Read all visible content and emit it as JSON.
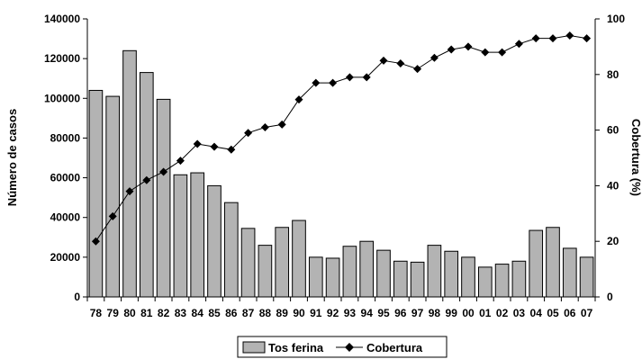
{
  "chart_data": {
    "type": "bar",
    "categories": [
      "78",
      "79",
      "80",
      "81",
      "82",
      "83",
      "84",
      "85",
      "86",
      "87",
      "88",
      "89",
      "90",
      "91",
      "92",
      "93",
      "94",
      "95",
      "96",
      "97",
      "98",
      "99",
      "00",
      "01",
      "02",
      "03",
      "04",
      "05",
      "06",
      "07"
    ],
    "series": [
      {
        "name": "Tos ferina",
        "type": "bar",
        "axis": "left",
        "color": "#b3b3b3",
        "values": [
          104000,
          101000,
          124000,
          113000,
          99500,
          61500,
          62500,
          56000,
          47500,
          34500,
          26000,
          35000,
          38500,
          20000,
          19500,
          25500,
          28000,
          23500,
          18000,
          17500,
          26000,
          23000,
          20000,
          15000,
          16500,
          18000,
          33500,
          35000,
          24500,
          20000
        ]
      },
      {
        "name": "Cobertura",
        "type": "line",
        "axis": "right",
        "color": "#000000",
        "marker": "diamond",
        "values": [
          20,
          29,
          38,
          42,
          45,
          49,
          55,
          54,
          53,
          59,
          61,
          62,
          71,
          77,
          77,
          79,
          79,
          85,
          84,
          82,
          86,
          89,
          90,
          88,
          88,
          91,
          93,
          93,
          94,
          93
        ]
      }
    ],
    "ylabel": "Número de casos",
    "ylabel_right": "Cobertura (%)",
    "xlabel": "",
    "ylim": [
      0,
      140000
    ],
    "yticks": [
      "0",
      "20000",
      "40000",
      "60000",
      "80000",
      "100000",
      "120000",
      "140000"
    ],
    "ylim_right": [
      0,
      100
    ],
    "yticks_right": [
      "0",
      "20",
      "40",
      "60",
      "80",
      "100"
    ],
    "grid": false,
    "legend_position": "bottom"
  }
}
